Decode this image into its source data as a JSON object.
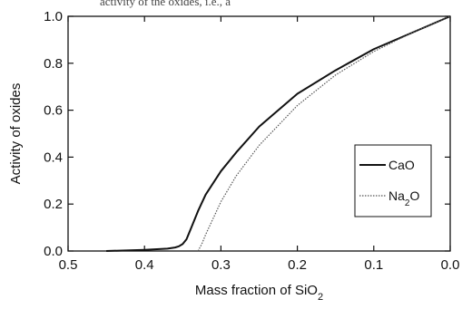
{
  "top_caption_fragment": "activity of the oxides, i.e., a",
  "chart_data": {
    "type": "line",
    "title": "",
    "xlabel": "Mass fraction of SiO",
    "xlabel_sub": "2",
    "ylabel": "Activity of oxides",
    "xlim": [
      0.5,
      0.0
    ],
    "ylim": [
      0.0,
      1.0
    ],
    "x_reversed": true,
    "x_ticks": [
      "0.5",
      "0.4",
      "0.3",
      "0.2",
      "0.1",
      "0.0"
    ],
    "y_ticks": [
      "0.0",
      "0.2",
      "0.4",
      "0.6",
      "0.8",
      "1.0"
    ],
    "grid": false,
    "legend_position": "right",
    "series": [
      {
        "name": "CaO",
        "style": "solid",
        "color": "#111111",
        "x": [
          0.45,
          0.4,
          0.37,
          0.36,
          0.355,
          0.35,
          0.345,
          0.34,
          0.335,
          0.33,
          0.32,
          0.3,
          0.28,
          0.25,
          0.2,
          0.15,
          0.1,
          0.05,
          0.0
        ],
        "y": [
          0.0,
          0.005,
          0.01,
          0.015,
          0.02,
          0.03,
          0.05,
          0.09,
          0.13,
          0.17,
          0.24,
          0.34,
          0.42,
          0.53,
          0.67,
          0.77,
          0.86,
          0.93,
          1.0
        ]
      },
      {
        "name": "Na",
        "name_sub": "2",
        "name_suffix": "O",
        "style": "dotted",
        "color": "#555555",
        "x": [
          0.33,
          0.325,
          0.32,
          0.31,
          0.3,
          0.28,
          0.25,
          0.2,
          0.15,
          0.1,
          0.05,
          0.0
        ],
        "y": [
          0.0,
          0.03,
          0.07,
          0.14,
          0.21,
          0.32,
          0.45,
          0.62,
          0.75,
          0.85,
          0.93,
          1.0
        ]
      }
    ]
  }
}
